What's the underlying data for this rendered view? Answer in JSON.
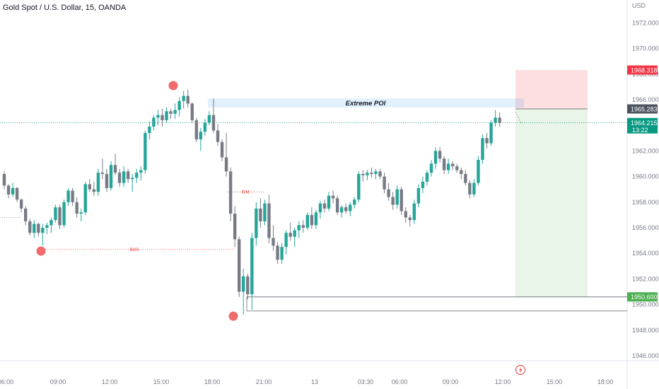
{
  "header": {
    "title": "Gold Spot / U.S. Dollar, 15, OANDA",
    "currency": "USD"
  },
  "chart_data": {
    "type": "candlestick",
    "ylim": [
      1945.2,
      1973.9
    ],
    "y_ticks": [
      "1972.000",
      "1970.000",
      "1968.000",
      "1966.000",
      "1962.000",
      "1960.000",
      "1958.000",
      "1956.000",
      "1954.000",
      "1952.000",
      "1950.000",
      "1948.000",
      "1946.000"
    ],
    "x_ticks": [
      "06:00",
      "09:00",
      "12:00",
      "15:00",
      "18:00",
      "21:00",
      "13",
      "03:30",
      "06:00",
      "09:00",
      "12:00",
      "15:00",
      "18:00"
    ],
    "candles": [
      [
        1960.2,
        1960.4,
        1959.0,
        1959.3
      ],
      [
        1959.3,
        1959.4,
        1958.3,
        1958.6
      ],
      [
        1958.6,
        1959.5,
        1958.4,
        1959.1
      ],
      [
        1959.1,
        1959.2,
        1958.0,
        1958.2
      ],
      [
        1958.2,
        1958.3,
        1957.2,
        1957.5
      ],
      [
        1957.5,
        1957.7,
        1956.2,
        1956.5
      ],
      [
        1956.5,
        1956.7,
        1955.4,
        1955.6
      ],
      [
        1955.6,
        1956.6,
        1955.2,
        1956.3
      ],
      [
        1956.3,
        1956.4,
        1955.3,
        1955.6
      ],
      [
        1955.6,
        1956.3,
        1954.6,
        1956.0
      ],
      [
        1956.0,
        1956.4,
        1955.5,
        1956.2
      ],
      [
        1956.2,
        1956.8,
        1955.6,
        1956.6
      ],
      [
        1956.6,
        1957.8,
        1956.4,
        1957.6
      ],
      [
        1957.6,
        1957.8,
        1955.9,
        1956.2
      ],
      [
        1956.2,
        1958.2,
        1956.0,
        1958.0
      ],
      [
        1958.0,
        1959.1,
        1957.7,
        1958.9
      ],
      [
        1958.9,
        1959.1,
        1957.7,
        1958.0
      ],
      [
        1958.0,
        1958.4,
        1956.8,
        1957.1
      ],
      [
        1957.1,
        1957.5,
        1956.5,
        1957.2
      ],
      [
        1957.2,
        1959.6,
        1957.0,
        1959.4
      ],
      [
        1959.4,
        1959.8,
        1958.8,
        1959.0
      ],
      [
        1959.0,
        1959.6,
        1958.5,
        1958.8
      ],
      [
        1958.8,
        1960.6,
        1958.5,
        1960.3
      ],
      [
        1960.3,
        1961.4,
        1959.8,
        1960.2
      ],
      [
        1960.2,
        1960.6,
        1958.8,
        1959.1
      ],
      [
        1959.1,
        1961.2,
        1958.9,
        1960.9
      ],
      [
        1960.9,
        1961.8,
        1960.1,
        1960.3
      ],
      [
        1960.3,
        1960.6,
        1959.2,
        1959.5
      ],
      [
        1959.5,
        1960.8,
        1959.2,
        1960.4
      ],
      [
        1960.4,
        1960.6,
        1959.5,
        1959.8
      ],
      [
        1959.8,
        1960.2,
        1958.8,
        1959.9
      ],
      [
        1959.9,
        1960.6,
        1959.5,
        1960.3
      ],
      [
        1960.3,
        1960.8,
        1959.7,
        1960.5
      ],
      [
        1960.5,
        1963.6,
        1960.2,
        1963.4
      ],
      [
        1963.4,
        1964.3,
        1962.9,
        1963.9
      ],
      [
        1963.9,
        1964.8,
        1963.6,
        1964.6
      ],
      [
        1964.6,
        1965.2,
        1964.0,
        1964.8
      ],
      [
        1964.8,
        1965.3,
        1963.9,
        1964.4
      ],
      [
        1964.4,
        1965.4,
        1964.2,
        1965.1
      ],
      [
        1965.1,
        1965.3,
        1964.5,
        1964.9
      ],
      [
        1964.9,
        1965.7,
        1964.5,
        1965.2
      ],
      [
        1965.2,
        1966.2,
        1964.7,
        1965.9
      ],
      [
        1965.9,
        1966.7,
        1965.3,
        1966.3
      ],
      [
        1966.3,
        1966.8,
        1965.4,
        1965.7
      ],
      [
        1965.7,
        1965.8,
        1964.2,
        1964.4
      ],
      [
        1964.4,
        1964.6,
        1962.7,
        1962.9
      ],
      [
        1962.9,
        1963.8,
        1962.0,
        1963.5
      ],
      [
        1963.5,
        1964.5,
        1963.2,
        1964.2
      ],
      [
        1964.2,
        1965.1,
        1964.0,
        1964.8
      ],
      [
        1964.8,
        1966.1,
        1963.4,
        1963.6
      ],
      [
        1963.6,
        1964.1,
        1962.4,
        1962.7
      ],
      [
        1962.7,
        1962.9,
        1961.2,
        1961.5
      ],
      [
        1961.5,
        1963.4,
        1960.0,
        1960.4
      ],
      [
        1960.4,
        1960.7,
        1956.5,
        1957.1
      ],
      [
        1957.1,
        1957.7,
        1954.5,
        1955.1
      ],
      [
        1955.1,
        1955.3,
        1950.6,
        1951.0
      ],
      [
        1951.0,
        1952.8,
        1949.2,
        1952.2
      ],
      [
        1952.2,
        1952.4,
        1950.4,
        1950.8
      ],
      [
        1950.8,
        1955.6,
        1949.6,
        1955.2
      ],
      [
        1955.2,
        1958.0,
        1954.6,
        1957.5
      ],
      [
        1957.5,
        1958.3,
        1956.0,
        1956.5
      ],
      [
        1956.5,
        1958.2,
        1956.2,
        1957.9
      ],
      [
        1957.9,
        1958.6,
        1954.8,
        1955.2
      ],
      [
        1955.2,
        1956.2,
        1954.2,
        1954.6
      ],
      [
        1954.6,
        1954.9,
        1953.2,
        1953.5
      ],
      [
        1953.5,
        1954.8,
        1953.2,
        1954.5
      ],
      [
        1954.5,
        1955.8,
        1953.9,
        1955.6
      ],
      [
        1955.6,
        1956.4,
        1955.0,
        1955.3
      ],
      [
        1955.3,
        1956.0,
        1954.5,
        1955.8
      ],
      [
        1955.8,
        1956.5,
        1955.2,
        1956.2
      ],
      [
        1956.2,
        1956.6,
        1955.6,
        1956.0
      ],
      [
        1956.0,
        1957.2,
        1955.8,
        1957.0
      ],
      [
        1957.0,
        1957.6,
        1955.9,
        1956.2
      ],
      [
        1956.2,
        1957.4,
        1955.9,
        1957.2
      ],
      [
        1957.2,
        1958.1,
        1956.7,
        1957.9
      ],
      [
        1957.9,
        1958.2,
        1957.2,
        1957.5
      ],
      [
        1957.5,
        1958.8,
        1957.3,
        1958.5
      ],
      [
        1958.5,
        1958.9,
        1957.9,
        1958.3
      ],
      [
        1958.3,
        1958.5,
        1957.0,
        1957.2
      ],
      [
        1957.2,
        1957.8,
        1956.8,
        1957.6
      ],
      [
        1957.6,
        1957.9,
        1957.1,
        1957.3
      ],
      [
        1957.3,
        1958.0,
        1956.9,
        1957.8
      ],
      [
        1957.8,
        1958.4,
        1957.5,
        1958.2
      ],
      [
        1958.2,
        1960.4,
        1958.0,
        1960.2
      ],
      [
        1960.2,
        1960.5,
        1959.6,
        1960.1
      ],
      [
        1960.1,
        1960.5,
        1959.7,
        1960.3
      ],
      [
        1960.3,
        1960.7,
        1959.9,
        1960.2
      ],
      [
        1960.2,
        1960.6,
        1959.8,
        1960.4
      ],
      [
        1960.4,
        1960.6,
        1959.8,
        1960.0
      ],
      [
        1960.0,
        1960.3,
        1958.7,
        1959.0
      ],
      [
        1959.0,
        1959.5,
        1958.1,
        1958.4
      ],
      [
        1958.4,
        1958.8,
        1957.4,
        1957.8
      ],
      [
        1957.8,
        1959.3,
        1957.5,
        1959.0
      ],
      [
        1959.0,
        1959.2,
        1957.0,
        1957.3
      ],
      [
        1957.3,
        1957.6,
        1956.4,
        1956.8
      ],
      [
        1956.8,
        1957.0,
        1956.1,
        1956.6
      ],
      [
        1956.6,
        1958.2,
        1956.3,
        1957.9
      ],
      [
        1957.9,
        1959.4,
        1957.6,
        1959.1
      ],
      [
        1959.1,
        1960.0,
        1958.7,
        1959.6
      ],
      [
        1959.6,
        1960.5,
        1959.3,
        1960.3
      ],
      [
        1960.3,
        1961.3,
        1960.0,
        1961.0
      ],
      [
        1961.0,
        1962.3,
        1960.6,
        1962.0
      ],
      [
        1962.0,
        1962.3,
        1961.1,
        1961.4
      ],
      [
        1961.4,
        1961.6,
        1960.2,
        1960.5
      ],
      [
        1960.5,
        1961.4,
        1960.2,
        1961.0
      ],
      [
        1961.0,
        1961.2,
        1960.5,
        1960.8
      ],
      [
        1960.8,
        1961.0,
        1960.3,
        1960.5
      ],
      [
        1960.5,
        1960.7,
        1959.8,
        1960.2
      ],
      [
        1960.2,
        1960.5,
        1959.3,
        1959.5
      ],
      [
        1959.5,
        1959.7,
        1958.3,
        1958.6
      ],
      [
        1958.6,
        1959.8,
        1958.4,
        1959.5
      ],
      [
        1959.5,
        1961.6,
        1959.3,
        1961.3
      ],
      [
        1961.3,
        1963.3,
        1961.0,
        1963.0
      ],
      [
        1963.0,
        1963.4,
        1962.2,
        1962.6
      ],
      [
        1962.6,
        1964.4,
        1962.4,
        1964.2
      ],
      [
        1964.2,
        1965.2,
        1963.9,
        1964.6
      ],
      [
        1964.6,
        1965.0,
        1963.9,
        1964.2
      ]
    ],
    "bos": {
      "label": "BOS",
      "price": 1954.3
    },
    "idm": {
      "label": "IDM",
      "price": 1958.8
    },
    "poi": {
      "label": "Extreme POI",
      "top": 1966.1,
      "bottom": 1965.4
    },
    "position": {
      "stop": 1968.318,
      "entry": 1965.283,
      "target": 1950.6
    },
    "swing_low_price": 1949.5,
    "price_labels": {
      "stop": "1968.318",
      "entry": "1965.283",
      "current": "1964.215",
      "countdown": "13:22",
      "target": "1950.600"
    },
    "colors": {
      "up": "#26a69a",
      "down": "#787b86",
      "stop_label": "#f23645",
      "entry_label": "#4c525e",
      "current_label": "#089981",
      "target_label": "#4caf50",
      "circle": "#f06b6b",
      "marker_text": "#e53935"
    }
  }
}
